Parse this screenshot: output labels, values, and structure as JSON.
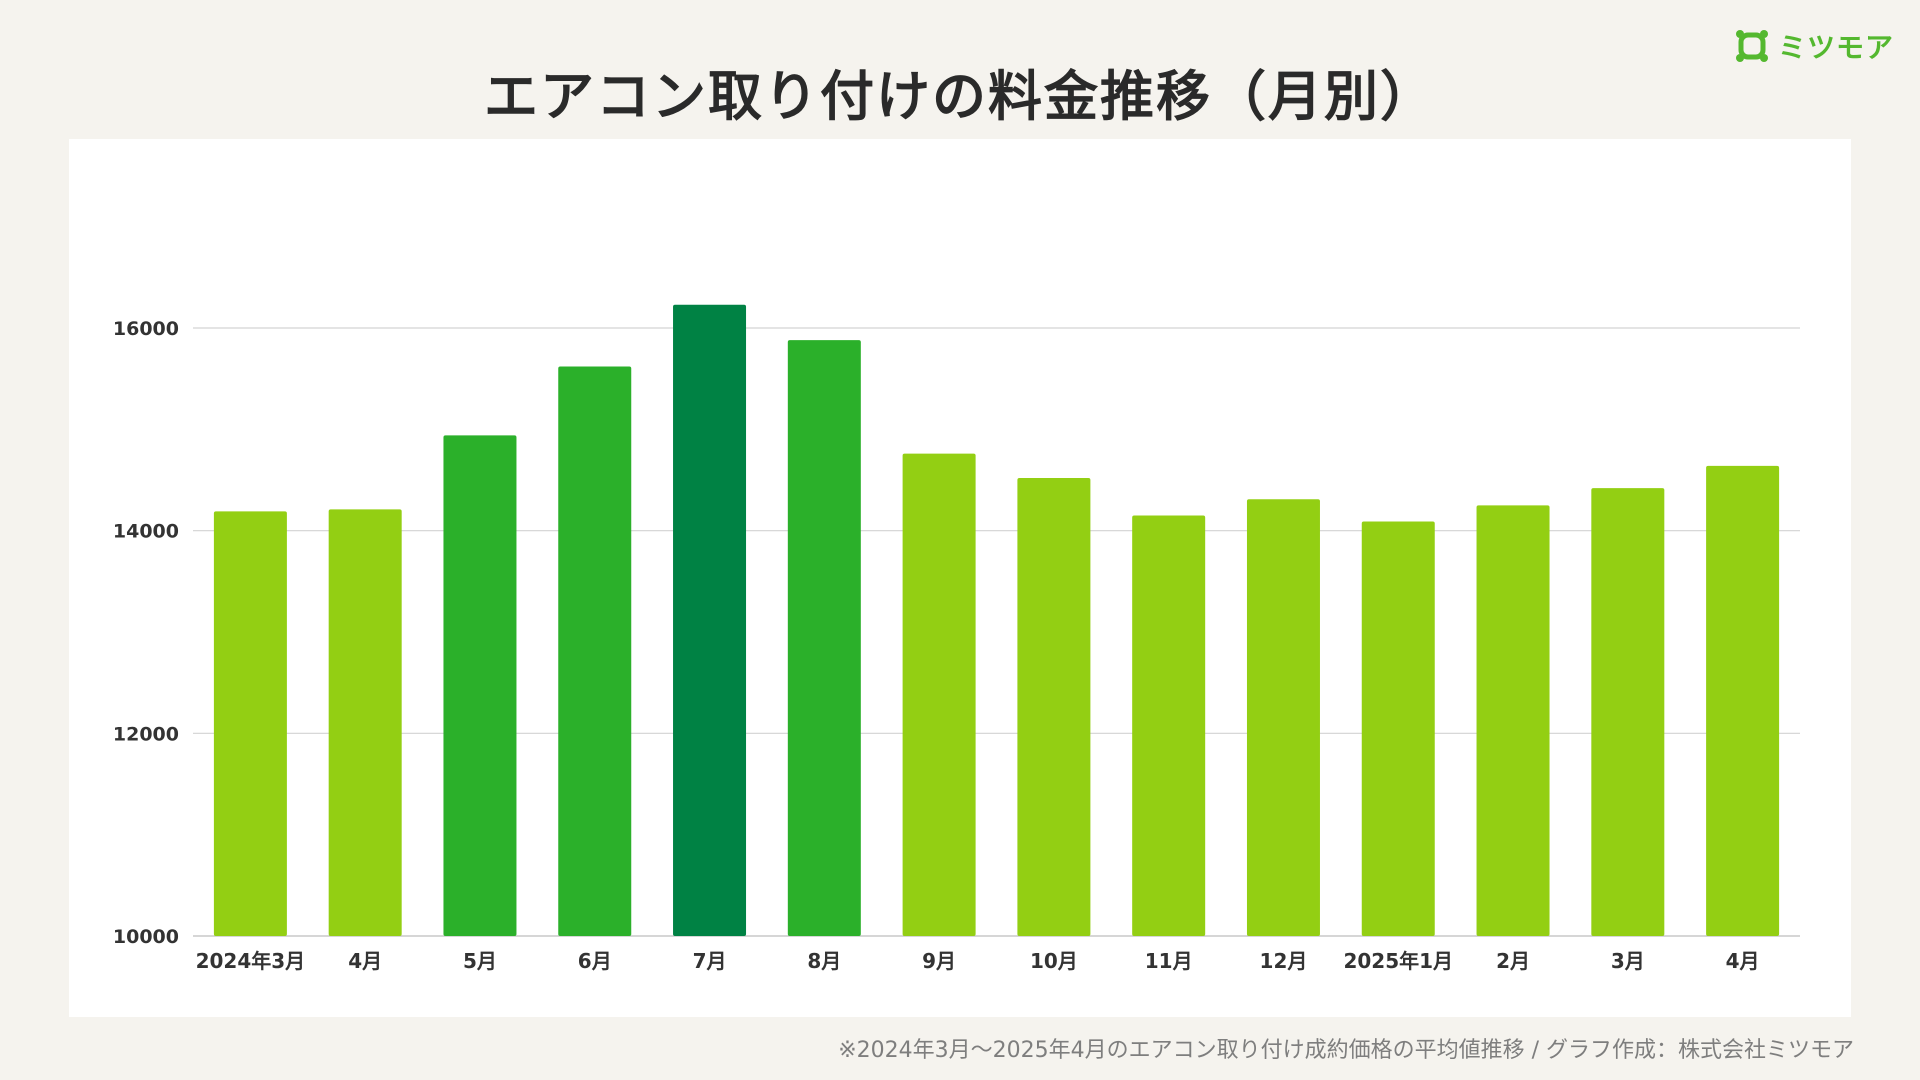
{
  "header": {
    "title": "エアコン取り付けの料金推移（月別）"
  },
  "logo": {
    "text": "ミツモア",
    "icon": "mitsumore-logo-icon"
  },
  "footnote": "※2024年3月〜2025年4月のエアコン取り付け成約価格の平均値推移 / グラフ作成：株式会社ミツモア",
  "colors": {
    "background": "#f5f3ee",
    "card": "#ffffff",
    "bar_light": "#93cf13",
    "bar_medium": "#2bb02a",
    "bar_dark": "#008244",
    "grid": "#d3d3d3",
    "text": "#333333",
    "logo": "#54b82f"
  },
  "chart_data": {
    "type": "bar",
    "title": "エアコン取り付けの料金推移（月別）",
    "categories": [
      "2024年3月",
      "4月",
      "5月",
      "6月",
      "7月",
      "8月",
      "9月",
      "10月",
      "11月",
      "12月",
      "2025年1月",
      "2月",
      "3月",
      "4月"
    ],
    "values": [
      14190,
      14210,
      14940,
      15620,
      16230,
      15880,
      14760,
      14520,
      14150,
      14310,
      14090,
      14250,
      14420,
      14640
    ],
    "bar_colors": [
      "#93cf13",
      "#93cf13",
      "#2bb02a",
      "#2bb02a",
      "#008244",
      "#2bb02a",
      "#93cf13",
      "#93cf13",
      "#93cf13",
      "#93cf13",
      "#93cf13",
      "#93cf13",
      "#93cf13",
      "#93cf13"
    ],
    "ylim": [
      10000,
      16800
    ],
    "yticks": [
      10000,
      12000,
      14000,
      16000
    ],
    "grid": true,
    "legend": "none",
    "xlabel": "",
    "ylabel": ""
  }
}
